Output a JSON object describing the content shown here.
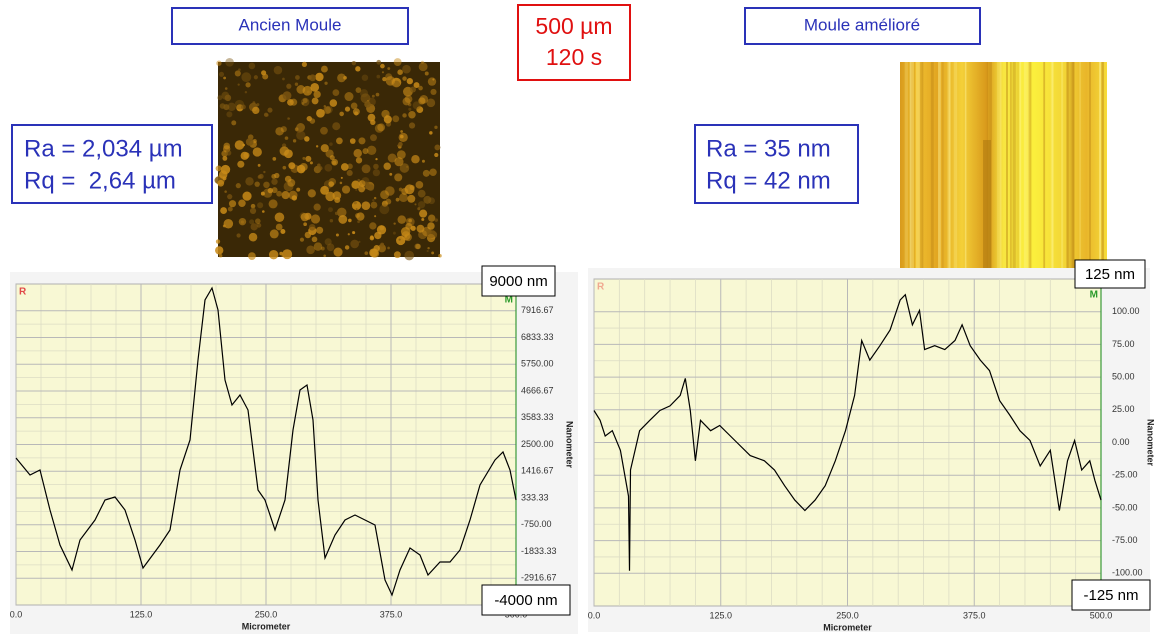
{
  "labels": {
    "left_title": "Ancien Moule",
    "right_title": "Moule amélioré",
    "condition": [
      "500 µm",
      "120 s"
    ],
    "left_roughness": [
      "Ra = 2,034 µm",
      "Rq =  2,64 µm"
    ],
    "right_roughness": [
      "Ra = 35 nm",
      "Rq = 42 nm"
    ]
  },
  "chart_data": [
    {
      "type": "line",
      "xlabel": "Micrometer",
      "ylabel": "Nanometer",
      "corner_labels": [
        "R",
        "M"
      ],
      "annotations": [
        "9000 nm",
        "-4000 nm"
      ],
      "x": [
        0,
        14,
        24,
        34,
        44,
        56,
        64,
        79,
        89,
        99,
        109,
        119,
        127,
        144,
        154,
        164,
        174,
        182,
        189,
        196,
        202,
        209,
        216,
        224,
        232,
        242,
        249,
        259,
        269,
        277,
        284,
        291,
        297,
        302,
        309,
        319,
        329,
        339,
        349,
        359,
        369,
        376,
        384,
        394,
        404,
        412,
        424,
        434,
        444,
        454,
        464,
        479,
        487,
        494,
        500
      ],
      "series": [
        {
          "color": "#000000",
          "values": [
            1953,
            1265,
            1467,
            -153,
            -1570,
            -2583,
            -1368,
            -558,
            252,
            374,
            -153,
            -1368,
            -2502,
            -1570,
            -963,
            1467,
            2682,
            5922,
            8352,
            8838,
            7947,
            5112,
            4100,
            4505,
            3897,
            657,
            252,
            -963,
            252,
            3087,
            4707,
            4910,
            3492,
            252,
            -2097,
            -1165,
            -558,
            -355,
            -558,
            -760,
            -2988,
            -3595,
            -2583,
            -1692,
            -1975,
            -2785,
            -2259,
            -2259,
            -1773,
            -558,
            860,
            1872,
            2196,
            1467,
            252
          ]
        }
      ],
      "xlim": [
        0,
        500
      ],
      "ylim": [
        -4000,
        9000
      ],
      "xticks": [
        {
          "value": 0,
          "label": "0.0"
        },
        {
          "value": 125,
          "label": "125.0"
        },
        {
          "value": 250,
          "label": "250.0"
        },
        {
          "value": 375,
          "label": "375.0"
        },
        {
          "value": 500,
          "label": "500.0"
        }
      ],
      "yticks": [
        7916.67,
        6833.33,
        {
          "value": 5750,
          "label": "5750.00"
        },
        4666.67,
        3583.33,
        {
          "value": 2500,
          "label": "2500.00"
        },
        1416.67,
        333.33,
        {
          "value": -750,
          "label": "-750.00"
        },
        -1833.33,
        -2916.67
      ],
      "grid": true
    },
    {
      "type": "line",
      "xlabel": "Micrometer",
      "ylabel": "Nanometer",
      "corner_labels": [
        "R",
        "M"
      ],
      "annotations": [
        "125 nm",
        "-125 nm"
      ],
      "x": [
        0,
        6,
        11,
        18,
        26,
        34,
        35,
        36,
        45,
        55,
        65,
        75,
        85,
        90,
        95,
        100,
        105,
        115,
        124,
        139,
        154,
        168,
        178,
        188,
        198,
        208,
        218,
        228,
        238,
        248,
        257,
        264,
        272,
        282,
        292,
        302,
        307,
        314,
        321,
        326,
        336,
        346,
        356,
        363,
        371,
        381,
        390,
        400,
        410,
        420,
        430,
        440,
        450,
        459,
        467,
        474,
        481,
        489,
        494,
        500
      ],
      "series": [
        {
          "color": "#000000",
          "values": [
            24.5,
            17,
            5,
            9,
            -6,
            -41,
            -98,
            -21,
            9,
            17,
            24.5,
            28,
            36,
            49,
            24.5,
            -14,
            17,
            9,
            13,
            1.5,
            -10,
            -14,
            -21,
            -33,
            -44,
            -52,
            -44,
            -33,
            -14,
            9,
            36,
            78,
            63,
            74,
            86,
            109,
            113,
            90,
            101,
            71,
            74,
            71,
            78,
            90,
            74,
            63,
            55,
            32,
            21,
            9,
            1.5,
            -18,
            -6,
            -52,
            -14,
            1.5,
            -21,
            -14,
            -29,
            -44
          ]
        }
      ],
      "xlim": [
        0,
        500
      ],
      "ylim": [
        -125,
        125
      ],
      "xticks": [
        {
          "value": 0,
          "label": "0.0"
        },
        {
          "value": 125,
          "label": "125.0"
        },
        {
          "value": 250,
          "label": "250.0"
        },
        {
          "value": 375,
          "label": "375.0"
        },
        {
          "value": 500,
          "label": "500.0"
        }
      ],
      "yticks": [
        {
          "value": 100,
          "label": "100.00"
        },
        {
          "value": 75,
          "label": "75.00"
        },
        {
          "value": 50,
          "label": "50.00"
        },
        {
          "value": 25,
          "label": "25.00"
        },
        {
          "value": 0,
          "label": "0.00"
        },
        {
          "value": -25,
          "label": "-25.00"
        },
        {
          "value": -50,
          "label": "-50.00"
        },
        {
          "value": -75,
          "label": "-75.00"
        },
        {
          "value": -100,
          "label": "-100.00"
        }
      ],
      "grid": true
    }
  ]
}
